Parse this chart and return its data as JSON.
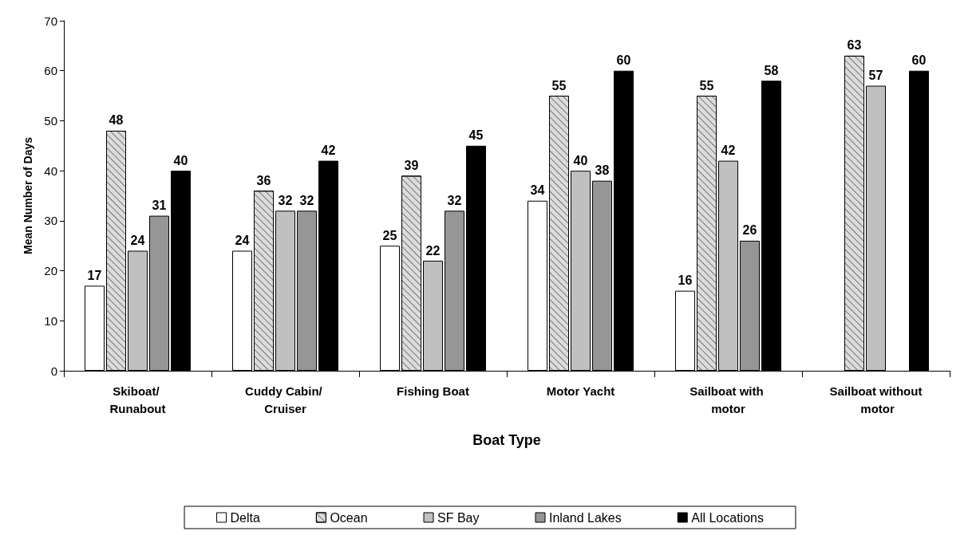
{
  "chart_data": {
    "type": "bar",
    "xlabel": "Boat Type",
    "ylabel": "Mean Number of Days",
    "categories": [
      "Skiboat/ Runabout",
      "Cuddy Cabin/ Cruiser",
      "Fishing Boat",
      "Motor Yacht",
      "Sailboat with motor",
      "Sailboat without motor"
    ],
    "series": [
      {
        "name": "Delta",
        "color": "#ffffff",
        "values": [
          17,
          24,
          25,
          34,
          16,
          null
        ]
      },
      {
        "name": "Ocean",
        "color": "#dcdcdc",
        "values": [
          48,
          36,
          39,
          55,
          55,
          63
        ]
      },
      {
        "name": "SF Bay",
        "color": "#c0c0c0",
        "values": [
          24,
          32,
          22,
          40,
          42,
          57
        ]
      },
      {
        "name": "Inland Lakes",
        "color": "#969696",
        "values": [
          31,
          32,
          32,
          38,
          26,
          null
        ]
      },
      {
        "name": "All Locations",
        "color": "#000000",
        "values": [
          40,
          42,
          45,
          60,
          58,
          60
        ]
      }
    ],
    "ylim": [
      0,
      70
    ],
    "yticks": [
      0,
      10,
      20,
      30,
      40,
      50,
      60,
      70
    ],
    "grid": false,
    "legend": "bottom",
    "data_labels": true
  }
}
